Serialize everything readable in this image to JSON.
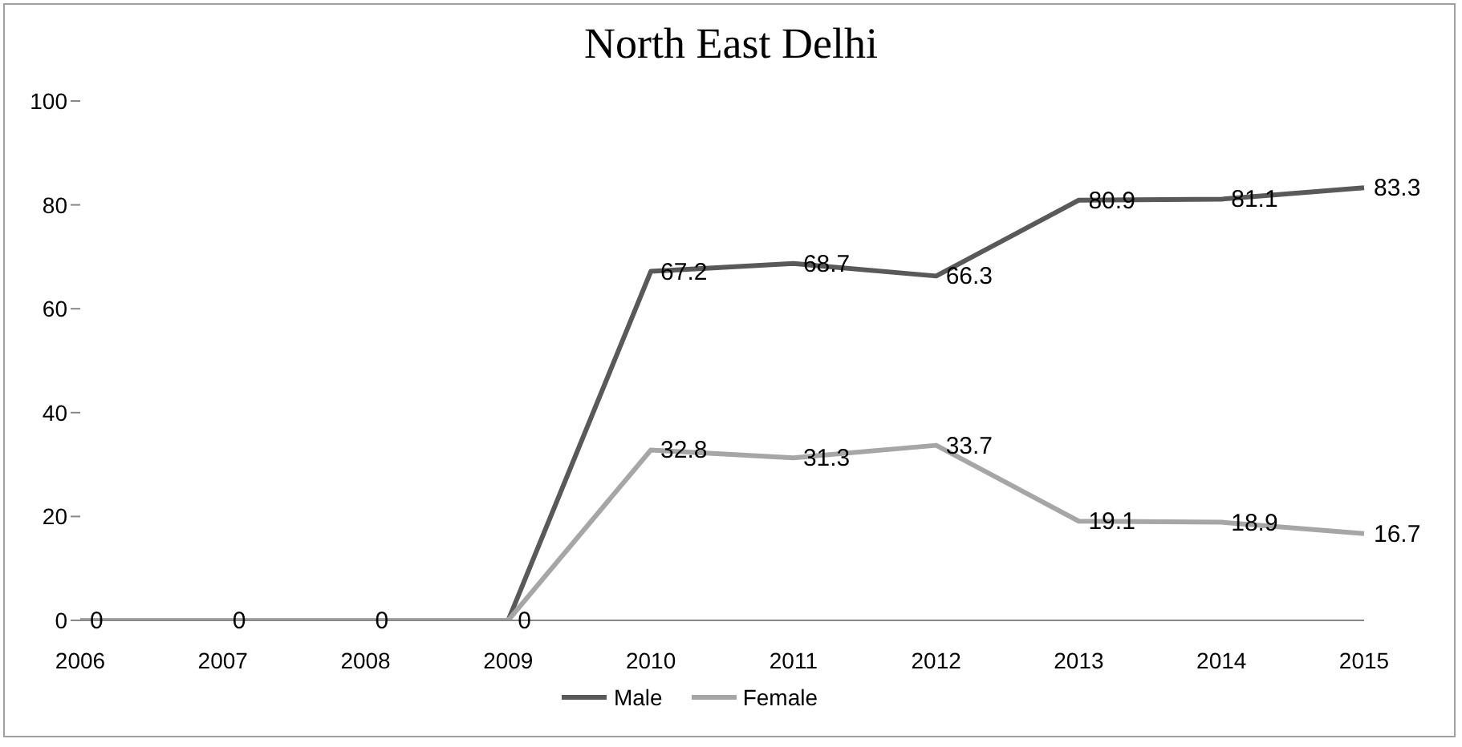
{
  "chart_data": {
    "type": "line",
    "title": "North East Delhi",
    "categories": [
      "2006",
      "2007",
      "2008",
      "2009",
      "2010",
      "2011",
      "2012",
      "2013",
      "2014",
      "2015"
    ],
    "series": [
      {
        "name": "Male",
        "color": "#595959",
        "values": [
          0,
          0,
          0,
          0,
          67.2,
          68.7,
          66.3,
          80.9,
          81.1,
          83.3
        ],
        "value_labels": [
          "0",
          "0",
          "0",
          "0",
          "67.2",
          "68.7",
          "66.3",
          "80.9",
          "81.1",
          "83.3"
        ]
      },
      {
        "name": "Female",
        "color": "#a6a6a6",
        "values": [
          0,
          0,
          0,
          0,
          32.8,
          31.3,
          33.7,
          19.1,
          18.9,
          16.7
        ],
        "value_labels": [
          null,
          null,
          null,
          null,
          "32.8",
          "31.3",
          "33.7",
          "19.1",
          "18.9",
          "16.7"
        ]
      }
    ],
    "ylim": [
      0,
      100
    ],
    "yticks": [
      0,
      20,
      40,
      60,
      80,
      100
    ],
    "grid": false,
    "legend": "bottom",
    "marker": "none",
    "line_style": "solid"
  }
}
